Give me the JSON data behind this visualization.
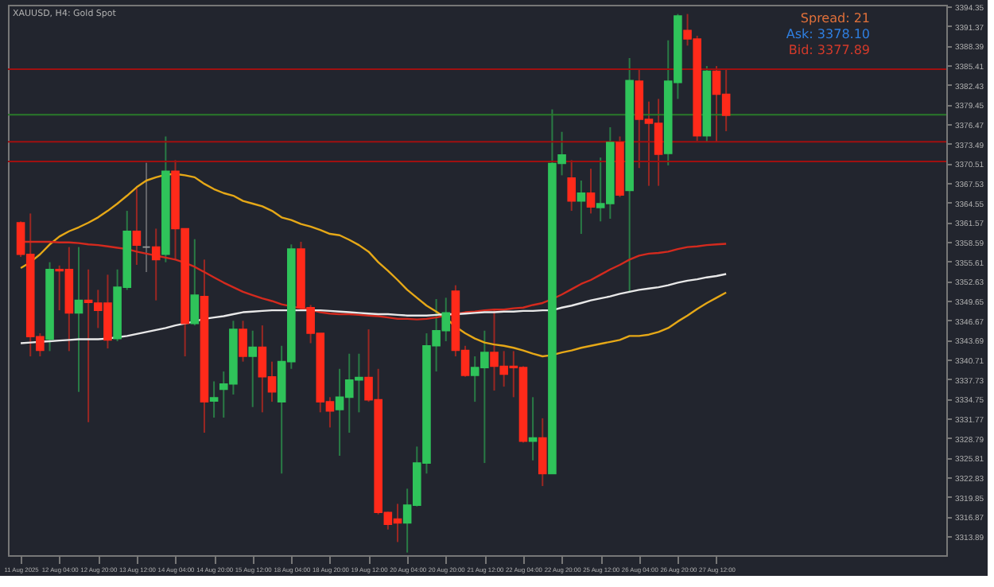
{
  "chart_data": {
    "type": "candlestick",
    "title": "XAUUSD, H4: Gold Spot",
    "categories": [
      "11 Aug 2025",
      null,
      null,
      null,
      "12 Aug 04:00",
      null,
      null,
      null,
      "12 Aug 20:00",
      null,
      null,
      null,
      "13 Aug 12:00",
      null,
      null,
      null,
      "14 Aug 04:00",
      null,
      null,
      null,
      "14 Aug 20:00",
      null,
      null,
      null,
      "15 Aug 12:00",
      null,
      null,
      null,
      "18 Aug 04:00",
      null,
      null,
      null,
      "18 Aug 20:00",
      null,
      null,
      null,
      "19 Aug 12:00",
      null,
      null,
      null,
      "20 Aug 04:00",
      null,
      null,
      null,
      "20 Aug 20:00",
      null,
      null,
      null,
      "21 Aug 12:00",
      null,
      null,
      null,
      "22 Aug 04:00",
      null,
      null,
      null,
      "22 Aug 20:00",
      null,
      null,
      null,
      "25 Aug 12:00",
      null,
      null,
      null,
      "26 Aug 04:00",
      null,
      null,
      null,
      "26 Aug 20:00",
      null,
      null,
      null,
      "27 Aug 12:00",
      null
    ],
    "ohlc": [
      [
        3361.5,
        3361.7,
        3356.3,
        3356.7
      ],
      [
        3356.7,
        3362.9,
        3341.2,
        3344.2
      ],
      [
        3344.2,
        3344.7,
        3341.2,
        3342.1
      ],
      [
        3343.8,
        3355.5,
        3342.0,
        3354.4
      ],
      [
        3354.4,
        3355.0,
        3348.2,
        3354.2
      ],
      [
        3354.4,
        3357.8,
        3342.0,
        3347.8
      ],
      [
        3347.8,
        3357.8,
        3335.8,
        3349.7
      ],
      [
        3349.7,
        3354.4,
        3331.2,
        3349.4
      ],
      [
        3349.3,
        3351.3,
        3345.5,
        3348.2
      ],
      [
        3349.3,
        3353.6,
        3342.4,
        3343.7
      ],
      [
        3343.9,
        3354.4,
        3343.5,
        3351.7
      ],
      [
        3351.7,
        3363.3,
        3351.3,
        3360.2
      ],
      [
        3360.2,
        3366.7,
        3355.1,
        3358.1
      ],
      [
        3357.8,
        3370.6,
        3354.0,
        3357.8
      ],
      [
        3357.8,
        3360.6,
        3349.7,
        3355.9
      ],
      [
        3356.7,
        3374.6,
        3355.5,
        3369.3
      ],
      [
        3369.3,
        3371.0,
        3355.9,
        3360.6
      ],
      [
        3360.6,
        3360.6,
        3341.2,
        3346.2
      ],
      [
        3346.2,
        3359.0,
        3345.9,
        3350.5
      ],
      [
        3350.3,
        3355.9,
        3329.6,
        3334.3
      ],
      [
        3334.4,
        3337.4,
        3331.9,
        3334.9
      ],
      [
        3336.2,
        3338.9,
        3331.9,
        3337.0
      ],
      [
        3337.0,
        3346.6,
        3335.4,
        3345.3
      ],
      [
        3345.3,
        3346.6,
        3340.4,
        3341.2
      ],
      [
        3341.2,
        3345.1,
        3333.5,
        3342.6
      ],
      [
        3342.6,
        3345.9,
        3332.7,
        3338.1
      ],
      [
        3338.1,
        3340.4,
        3334.3,
        3335.8
      ],
      [
        3334.3,
        3342.8,
        3323.4,
        3340.4
      ],
      [
        3340.4,
        3358.2,
        3339.3,
        3357.5
      ],
      [
        3357.5,
        3358.6,
        3348.2,
        3348.6
      ],
      [
        3348.6,
        3349.0,
        3343.2,
        3344.7
      ],
      [
        3344.7,
        3344.7,
        3332.7,
        3334.3
      ],
      [
        3334.3,
        3335.0,
        3330.4,
        3332.9
      ],
      [
        3333.1,
        3339.3,
        3326.1,
        3335.0
      ],
      [
        3335.0,
        3341.6,
        3329.6,
        3337.6
      ],
      [
        3337.6,
        3341.6,
        3332.7,
        3338.0
      ],
      [
        3338.0,
        3345.3,
        3334.3,
        3334.6
      ],
      [
        3334.6,
        3339.3,
        3317.2,
        3317.5
      ],
      [
        3317.5,
        3317.6,
        3314.9,
        3315.7
      ],
      [
        3316.5,
        3318.8,
        3313.0,
        3315.9
      ],
      [
        3315.9,
        3321.1,
        3311.4,
        3318.6
      ],
      [
        3318.6,
        3327.5,
        3318.4,
        3325.0
      ],
      [
        3325.0,
        3344.7,
        3323.4,
        3342.8
      ],
      [
        3342.8,
        3349.9,
        3338.9,
        3345.1
      ],
      [
        3345.1,
        3350.1,
        3343.5,
        3347.8
      ],
      [
        3351.1,
        3352.0,
        3341.2,
        3342.1
      ],
      [
        3342.1,
        3342.8,
        3338.1,
        3338.3
      ],
      [
        3338.3,
        3341.2,
        3334.3,
        3339.5
      ],
      [
        3339.5,
        3345.1,
        3325.0,
        3341.8
      ],
      [
        3341.8,
        3348.3,
        3336.0,
        3339.7
      ],
      [
        3339.7,
        3342.0,
        3336.6,
        3338.5
      ],
      [
        3339.7,
        3342.0,
        3335.0,
        3339.5
      ],
      [
        3339.5,
        3339.7,
        3328.1,
        3328.3
      ],
      [
        3328.3,
        3335.0,
        3325.4,
        3328.8
      ],
      [
        3328.8,
        3331.8,
        3321.5,
        3323.4
      ],
      [
        3323.4,
        3378.7,
        3323.4,
        3370.5
      ],
      [
        3370.5,
        3375.3,
        3368.7,
        3371.8
      ],
      [
        3368.3,
        3371.0,
        3363.3,
        3364.8
      ],
      [
        3364.8,
        3367.9,
        3359.8,
        3366.0
      ],
      [
        3366.0,
        3369.7,
        3362.9,
        3363.9
      ],
      [
        3363.8,
        3371.4,
        3361.7,
        3364.4
      ],
      [
        3364.4,
        3376.0,
        3362.1,
        3373.7
      ],
      [
        3373.7,
        3374.6,
        3365.4,
        3365.7
      ],
      [
        3366.4,
        3386.5,
        3350.9,
        3383.1
      ],
      [
        3383.0,
        3384.9,
        3369.8,
        3377.2
      ],
      [
        3377.2,
        3379.9,
        3367.1,
        3376.6
      ],
      [
        3376.6,
        3380.3,
        3367.1,
        3371.9
      ],
      [
        3372.0,
        3389.2,
        3370.2,
        3383.0
      ],
      [
        3382.8,
        3393.2,
        3380.3,
        3392.9
      ],
      [
        3390.7,
        3393.2,
        3388.4,
        3389.4
      ],
      [
        3389.4,
        3389.9,
        3373.9,
        3374.7
      ],
      [
        3374.7,
        3385.3,
        3373.7,
        3384.5
      ],
      [
        3384.5,
        3385.3,
        3373.7,
        3381.0
      ],
      [
        3381.0,
        3384.9,
        3375.4,
        3377.8
      ]
    ],
    "colors": [
      "#ff2a1a",
      "#ff2a1a",
      "#ff2a1a",
      "#2fc35a",
      "#ff2a1a",
      "#ff2a1a",
      "#2fc35a",
      "#ff2a1a",
      "#ff2a1a",
      "#ff2a1a",
      "#2fc35a",
      "#2fc35a",
      "#ff2a1a",
      "#9a9a9a",
      "#ff2a1a",
      "#2fc35a",
      "#ff2a1a",
      "#ff2a1a",
      "#2fc35a",
      "#ff2a1a",
      "#2fc35a",
      "#2fc35a",
      "#2fc35a",
      "#ff2a1a",
      "#2fc35a",
      "#ff2a1a",
      "#ff2a1a",
      "#2fc35a",
      "#2fc35a",
      "#ff2a1a",
      "#ff2a1a",
      "#ff2a1a",
      "#ff2a1a",
      "#2fc35a",
      "#2fc35a",
      "#2fc35a",
      "#ff2a1a",
      "#ff2a1a",
      "#ff2a1a",
      "#ff2a1a",
      "#2fc35a",
      "#2fc35a",
      "#2fc35a",
      "#2fc35a",
      "#2fc35a",
      "#ff2a1a",
      "#ff2a1a",
      "#2fc35a",
      "#2fc35a",
      "#ff2a1a",
      "#ff2a1a",
      "#ff2a1a",
      "#ff2a1a",
      "#2fc35a",
      "#ff2a1a",
      "#2fc35a",
      "#2fc35a",
      "#ff2a1a",
      "#2fc35a",
      "#ff2a1a",
      "#2fc35a",
      "#2fc35a",
      "#ff2a1a",
      "#2fc35a",
      "#ff2a1a",
      "#ff2a1a",
      "#ff2a1a",
      "#2fc35a",
      "#2fc35a",
      "#ff2a1a",
      "#ff2a1a",
      "#2fc35a",
      "#ff2a1a",
      "#ff2a1a"
    ],
    "series": [
      {
        "type": "line",
        "color": "#e6a817",
        "values": [
          3354.6,
          3355.5,
          3356.7,
          3358.2,
          3359.4,
          3360.2,
          3360.8,
          3361.5,
          3362.3,
          3363.3,
          3364.4,
          3365.6,
          3366.9,
          3367.9,
          3368.4,
          3368.8,
          3368.9,
          3368.7,
          3368.4,
          3367.4,
          3366.6,
          3366.0,
          3365.6,
          3364.8,
          3364.4,
          3364.0,
          3363.3,
          3362.3,
          3361.9,
          3361.3,
          3360.9,
          3360.4,
          3359.8,
          3359.6,
          3358.9,
          3358.1,
          3357.1,
          3355.5,
          3354.2,
          3352.8,
          3351.3,
          3350.1,
          3348.9,
          3348.0,
          3347.0,
          3345.7,
          3344.7,
          3343.9,
          3343.3,
          3343.0,
          3342.8,
          3342.5,
          3342.1,
          3341.6,
          3341.2,
          3341.4,
          3341.8,
          3342.1,
          3342.5,
          3342.8,
          3343.1,
          3343.4,
          3343.7,
          3344.3,
          3344.3,
          3344.5,
          3344.9,
          3345.5,
          3346.5,
          3347.4,
          3348.4,
          3349.3,
          3350.1,
          3350.9
        ]
      },
      {
        "type": "line",
        "color": "#d42a1e",
        "values": [
          3358.6,
          3358.6,
          3358.6,
          3358.6,
          3358.5,
          3358.5,
          3358.4,
          3358.2,
          3358.1,
          3357.9,
          3357.7,
          3357.5,
          3357.1,
          3356.8,
          3356.5,
          3356.2,
          3355.9,
          3355.4,
          3354.8,
          3354.0,
          3353.2,
          3352.4,
          3351.7,
          3351.0,
          3350.5,
          3350.0,
          3349.6,
          3349.1,
          3348.8,
          3348.5,
          3348.3,
          3347.9,
          3347.7,
          3347.6,
          3347.6,
          3347.5,
          3347.4,
          3347.3,
          3347.1,
          3346.9,
          3346.9,
          3346.8,
          3346.9,
          3347.1,
          3347.4,
          3347.6,
          3347.9,
          3348.0,
          3348.2,
          3348.3,
          3348.3,
          3348.5,
          3348.6,
          3349.0,
          3349.3,
          3349.9,
          3350.6,
          3351.4,
          3352.2,
          3352.8,
          3353.6,
          3354.4,
          3355.1,
          3355.9,
          3356.5,
          3356.8,
          3356.9,
          3357.1,
          3357.5,
          3357.8,
          3357.9,
          3358.1,
          3358.2,
          3358.3
        ]
      },
      {
        "type": "line",
        "color": "#e8e8e8",
        "values": [
          3343.2,
          3343.3,
          3343.4,
          3343.5,
          3343.6,
          3343.7,
          3343.8,
          3343.8,
          3343.8,
          3343.9,
          3344.1,
          3344.3,
          3344.6,
          3344.9,
          3345.2,
          3345.5,
          3345.9,
          3346.2,
          3346.5,
          3346.9,
          3347.1,
          3347.3,
          3347.6,
          3347.9,
          3348.0,
          3348.1,
          3348.2,
          3348.2,
          3348.2,
          3348.2,
          3348.2,
          3348.2,
          3348.1,
          3348.0,
          3347.9,
          3347.8,
          3347.7,
          3347.6,
          3347.6,
          3347.5,
          3347.4,
          3347.4,
          3347.4,
          3347.5,
          3347.6,
          3347.6,
          3347.7,
          3347.8,
          3347.9,
          3347.9,
          3348.0,
          3348.0,
          3348.1,
          3348.1,
          3348.2,
          3348.2,
          3348.6,
          3348.9,
          3349.3,
          3349.7,
          3350.0,
          3350.3,
          3350.7,
          3351.0,
          3351.3,
          3351.5,
          3351.7,
          3352.0,
          3352.4,
          3352.7,
          3352.9,
          3353.2,
          3353.4,
          3353.7
        ]
      }
    ],
    "ylim": [
      3311.0,
      3394.6
    ],
    "yticks": [
      3394.35,
      3391.37,
      3388.39,
      3385.41,
      3382.43,
      3379.45,
      3376.47,
      3373.49,
      3370.51,
      3367.53,
      3364.55,
      3361.57,
      3358.59,
      3355.61,
      3352.63,
      3349.65,
      3346.67,
      3343.69,
      3340.71,
      3337.73,
      3334.75,
      3331.77,
      3328.79,
      3325.81,
      3322.83,
      3319.85,
      3316.87,
      3313.89
    ],
    "ref_lines": [
      {
        "axis": "y",
        "value": 3384.8,
        "color": "#a01010"
      },
      {
        "axis": "y",
        "value": 3377.9,
        "color": "#2a7a2a"
      },
      {
        "axis": "y",
        "value": 3373.8,
        "color": "#a01010"
      },
      {
        "axis": "y",
        "value": 3370.8,
        "color": "#a01010"
      }
    ],
    "annotations": [
      "Spread: 21",
      "Ask: 3378.10",
      "Bid: 3377.89"
    ],
    "grid": false
  }
}
